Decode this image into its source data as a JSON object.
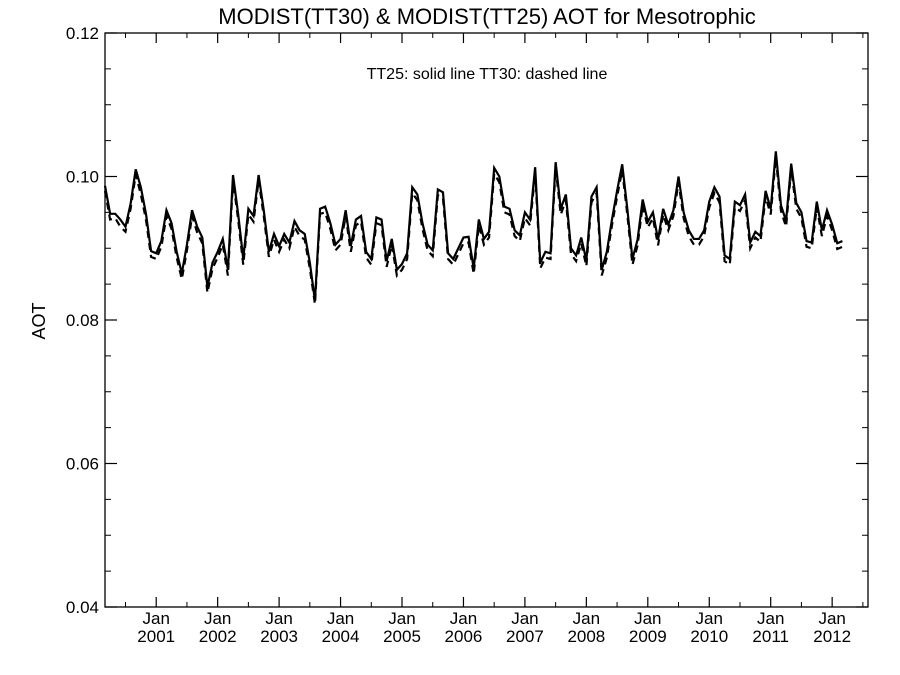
{
  "chart_data": {
    "type": "line",
    "title": "MODIST(TT30) & MODIST(TT25)  AOT for Mesotrophic",
    "annotation": "TT25: solid line   TT30: dashed line",
    "ylabel": "AOT",
    "xlabel": "",
    "ylim": [
      0.04,
      0.12
    ],
    "yticks": [
      "0.04",
      "0.06",
      "0.08",
      "0.10",
      "0.12"
    ],
    "xlim": [
      "2000-03",
      "2012-08"
    ],
    "xticks": [
      {
        "month": "Jan",
        "year": "2001",
        "date": "2001-01"
      },
      {
        "month": "Jan",
        "year": "2002",
        "date": "2002-01"
      },
      {
        "month": "Jan",
        "year": "2003",
        "date": "2003-01"
      },
      {
        "month": "Jan",
        "year": "2004",
        "date": "2004-01"
      },
      {
        "month": "Jan",
        "year": "2005",
        "date": "2005-01"
      },
      {
        "month": "Jan",
        "year": "2006",
        "date": "2006-01"
      },
      {
        "month": "Jan",
        "year": "2007",
        "date": "2007-01"
      },
      {
        "month": "Jan",
        "year": "2008",
        "date": "2008-01"
      },
      {
        "month": "Jan",
        "year": "2009",
        "date": "2009-01"
      },
      {
        "month": "Jan",
        "year": "2010",
        "date": "2010-01"
      },
      {
        "month": "Jan",
        "year": "2011",
        "date": "2011-01"
      },
      {
        "month": "Jan",
        "year": "2012",
        "date": "2012-01"
      }
    ],
    "x_start": "2000-03",
    "series": [
      {
        "name": "TT25",
        "style": "solid",
        "values": [
          0.0987,
          0.0948,
          0.0948,
          0.094,
          0.093,
          0.0962,
          0.101,
          0.0985,
          0.0948,
          0.0896,
          0.0893,
          0.091,
          0.0953,
          0.0935,
          0.0895,
          0.0865,
          0.0905,
          0.0953,
          0.093,
          0.0915,
          0.0846,
          0.088,
          0.0895,
          0.0913,
          0.087,
          0.1002,
          0.0948,
          0.0885,
          0.0955,
          0.0945,
          0.1002,
          0.0953,
          0.0895,
          0.092,
          0.0903,
          0.092,
          0.0908,
          0.0938,
          0.0925,
          0.092,
          0.088,
          0.0827,
          0.0955,
          0.0958,
          0.0935,
          0.0905,
          0.0913,
          0.0953,
          0.0903,
          0.094,
          0.0945,
          0.0895,
          0.0885,
          0.0943,
          0.094,
          0.0882,
          0.0913,
          0.087,
          0.0878,
          0.0893,
          0.0985,
          0.0975,
          0.0935,
          0.0905,
          0.0897,
          0.0982,
          0.0978,
          0.0893,
          0.0885,
          0.09,
          0.0915,
          0.0916,
          0.0872,
          0.094,
          0.0913,
          0.0923,
          0.1012,
          0.1,
          0.0958,
          0.0955,
          0.0925,
          0.0918,
          0.095,
          0.094,
          0.1013,
          0.088,
          0.0895,
          0.0893,
          0.102,
          0.0955,
          0.0975,
          0.09,
          0.089,
          0.0915,
          0.0883,
          0.0972,
          0.0985,
          0.087,
          0.0895,
          0.094,
          0.098,
          0.1017,
          0.0955,
          0.0885,
          0.0912,
          0.0968,
          0.0937,
          0.095,
          0.0912,
          0.0955,
          0.0933,
          0.0953,
          0.1,
          0.095,
          0.0925,
          0.0913,
          0.0913,
          0.0925,
          0.0965,
          0.0985,
          0.0972,
          0.089,
          0.0885,
          0.0965,
          0.096,
          0.0975,
          0.0908,
          0.0923,
          0.0917,
          0.098,
          0.0955,
          0.1035,
          0.096,
          0.0938,
          0.1018,
          0.0963,
          0.095,
          0.091,
          0.0908,
          0.0965,
          0.0925,
          0.0953,
          0.0933,
          0.0907,
          0.091
        ]
      },
      {
        "name": "TT30",
        "style": "dashed",
        "values": [
          0.098,
          0.094,
          0.0942,
          0.093,
          0.0923,
          0.0955,
          0.1003,
          0.0975,
          0.094,
          0.0888,
          0.0885,
          0.0902,
          0.0945,
          0.0927,
          0.0887,
          0.0857,
          0.0897,
          0.0945,
          0.0922,
          0.0907,
          0.0838,
          0.0872,
          0.0887,
          0.0905,
          0.0862,
          0.0995,
          0.094,
          0.0877,
          0.0947,
          0.0937,
          0.0995,
          0.0945,
          0.0888,
          0.0912,
          0.0895,
          0.0912,
          0.09,
          0.093,
          0.0917,
          0.0912,
          0.0872,
          0.0822,
          0.0948,
          0.095,
          0.0927,
          0.0897,
          0.0905,
          0.0945,
          0.0895,
          0.0932,
          0.0937,
          0.0887,
          0.0877,
          0.0935,
          0.0932,
          0.0874,
          0.0905,
          0.0862,
          0.087,
          0.0885,
          0.0977,
          0.0967,
          0.0927,
          0.0897,
          0.0889,
          0.0974,
          0.097,
          0.0885,
          0.0877,
          0.0892,
          0.0907,
          0.0908,
          0.0864,
          0.0932,
          0.0905,
          0.0915,
          0.1004,
          0.0992,
          0.095,
          0.0947,
          0.0917,
          0.091,
          0.0942,
          0.0932,
          0.1005,
          0.0872,
          0.0887,
          0.0885,
          0.1012,
          0.0947,
          0.0967,
          0.0892,
          0.0882,
          0.0907,
          0.0875,
          0.0964,
          0.0977,
          0.0862,
          0.0887,
          0.0932,
          0.0972,
          0.1009,
          0.0947,
          0.0877,
          0.0904,
          0.096,
          0.0929,
          0.0942,
          0.0904,
          0.0947,
          0.0925,
          0.0945,
          0.0992,
          0.0942,
          0.0917,
          0.0905,
          0.0905,
          0.0917,
          0.0957,
          0.0977,
          0.0964,
          0.0882,
          0.0877,
          0.0957,
          0.0952,
          0.0967,
          0.09,
          0.0915,
          0.0909,
          0.0972,
          0.0947,
          0.1027,
          0.0952,
          0.093,
          0.101,
          0.0955,
          0.0942,
          0.0902,
          0.09,
          0.0957,
          0.0917,
          0.0945,
          0.0925,
          0.0899,
          0.0902
        ]
      }
    ],
    "grid": false,
    "legend": "none"
  }
}
